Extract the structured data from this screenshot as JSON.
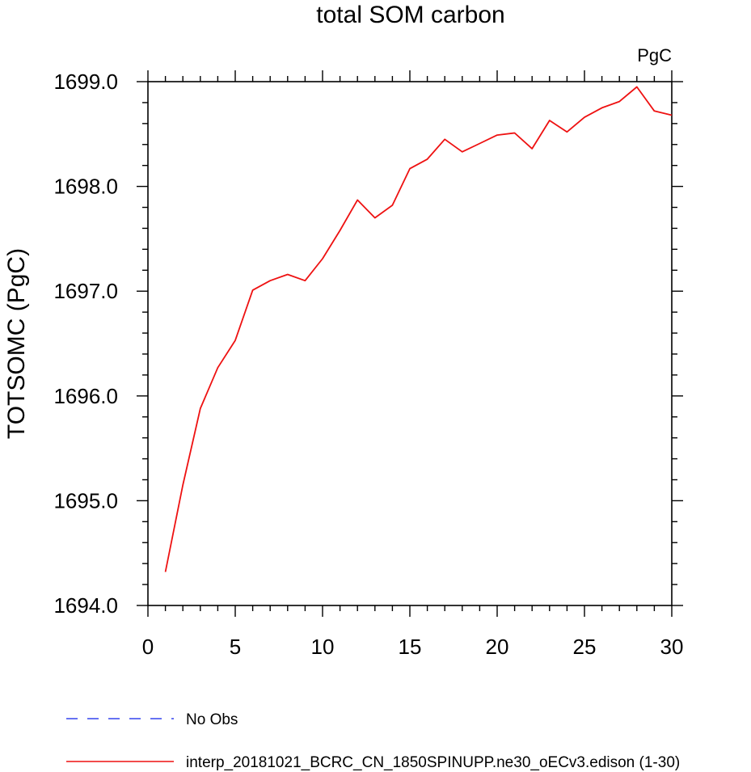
{
  "chart_data": {
    "type": "line",
    "title": "total SOM carbon",
    "units_label": "PgC",
    "ylabel": "TOTSOMC  (PgC)",
    "xlabel": "",
    "xlim": [
      0,
      30
    ],
    "ylim": [
      1694.0,
      1699.0
    ],
    "x_ticks": [
      0,
      5,
      10,
      15,
      20,
      25,
      30
    ],
    "x_tick_labels": [
      "0",
      "5",
      "10",
      "15",
      "20",
      "25",
      "30"
    ],
    "y_ticks": [
      1694.0,
      1695.0,
      1696.0,
      1697.0,
      1698.0,
      1699.0
    ],
    "y_tick_labels": [
      "1694.0",
      "1695.0",
      "1696.0",
      "1697.0",
      "1698.0",
      "1699.0"
    ],
    "grid": false,
    "legend_position": "bottom",
    "series": [
      {
        "name": "No Obs",
        "color": "#3344ee",
        "dash": "dashed",
        "x": [],
        "values": []
      },
      {
        "name": "interp_20181021_BCRC_CN_1850SPINUPP.ne30_oECv3.edison (1-30)",
        "color": "#ee1111",
        "dash": "solid",
        "x": [
          1,
          2,
          3,
          4,
          5,
          6,
          7,
          8,
          9,
          10,
          11,
          12,
          13,
          14,
          15,
          16,
          17,
          18,
          19,
          20,
          21,
          22,
          23,
          24,
          25,
          26,
          27,
          28,
          29,
          30
        ],
        "values": [
          1694.32,
          1695.15,
          1695.88,
          1696.27,
          1696.53,
          1697.01,
          1697.1,
          1697.16,
          1697.1,
          1697.31,
          1697.58,
          1697.87,
          1697.7,
          1697.82,
          1698.17,
          1698.26,
          1698.45,
          1698.33,
          1698.41,
          1698.49,
          1698.51,
          1698.36,
          1698.63,
          1698.52,
          1698.66,
          1698.75,
          1698.81,
          1698.95,
          1698.72,
          1698.68
        ]
      }
    ]
  }
}
